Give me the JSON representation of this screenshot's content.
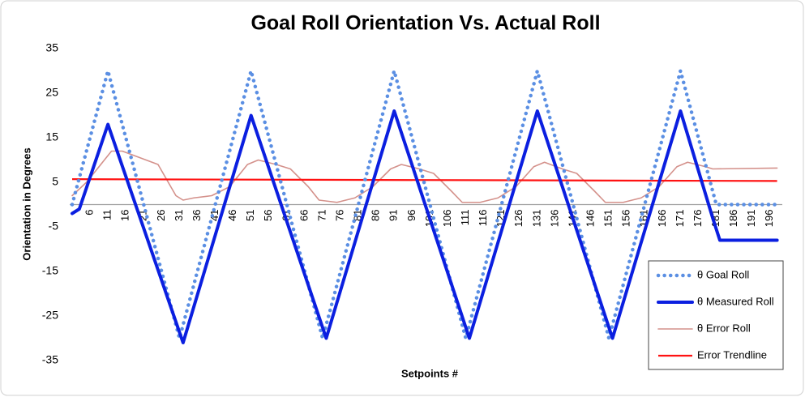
{
  "chart_data": {
    "type": "line",
    "title": "Goal Roll Orientation Vs. Actual Roll",
    "x_label": "Setpoints #",
    "y_label": "Orientation in Degrees",
    "xlim": [
      1,
      199
    ],
    "xticks": [
      6,
      11,
      16,
      21,
      26,
      31,
      36,
      41,
      46,
      51,
      56,
      61,
      66,
      71,
      76,
      81,
      86,
      91,
      96,
      101,
      106,
      111,
      116,
      121,
      126,
      131,
      136,
      141,
      146,
      151,
      156,
      161,
      166,
      171,
      176,
      181,
      186,
      191,
      196
    ],
    "ylim": [
      -35,
      35
    ],
    "yticks": [
      -35,
      -25,
      -15,
      -5,
      5,
      15,
      25,
      35
    ],
    "grid": false,
    "legend": "bottom-right",
    "series": [
      {
        "name": "θ Goal Roll",
        "color": "#5b8fe3",
        "style": "dotted",
        "x": [
          1,
          11,
          31,
          51,
          71,
          91,
          111,
          131,
          151,
          171,
          181,
          198
        ],
        "values": [
          0,
          30,
          -30,
          30,
          -30,
          30,
          -30,
          30,
          -30,
          30,
          0,
          0
        ]
      },
      {
        "name": "θ Measured Roll",
        "color": "#0b1fe0",
        "style": "thick",
        "x": [
          1,
          3,
          11,
          32,
          51,
          72,
          91,
          112,
          131,
          152,
          171,
          180,
          182,
          198
        ],
        "values": [
          -2,
          -1,
          18,
          -31,
          20,
          -30,
          21,
          -30,
          21,
          -30,
          21,
          -3,
          -8,
          -8
        ]
      },
      {
        "name": "θ Error Roll",
        "color": "#d4918b",
        "style": "thin",
        "x": [
          1,
          5,
          10,
          12,
          15,
          20,
          25,
          30,
          32,
          35,
          40,
          45,
          50,
          53,
          58,
          62,
          67,
          70,
          75,
          80,
          85,
          90,
          93,
          98,
          102,
          107,
          110,
          115,
          120,
          125,
          130,
          133,
          138,
          142,
          147,
          150,
          155,
          160,
          165,
          170,
          173,
          178,
          180,
          198
        ],
        "values": [
          2,
          5,
          10,
          12,
          12,
          10.5,
          9,
          2,
          1,
          1.5,
          2,
          4,
          9,
          10,
          9,
          8,
          4,
          1,
          0.5,
          1.5,
          4,
          8,
          9,
          8,
          7,
          3,
          0.5,
          0.5,
          1.5,
          4,
          8.5,
          9.5,
          8,
          7,
          3,
          0.5,
          0.5,
          1.5,
          4,
          8.5,
          9.5,
          8.5,
          8,
          8.2
        ]
      },
      {
        "name": "Error Trendline",
        "color": "#ff1212",
        "style": "medium",
        "x": [
          1,
          198
        ],
        "values": [
          5.7,
          5.3
        ]
      }
    ]
  }
}
